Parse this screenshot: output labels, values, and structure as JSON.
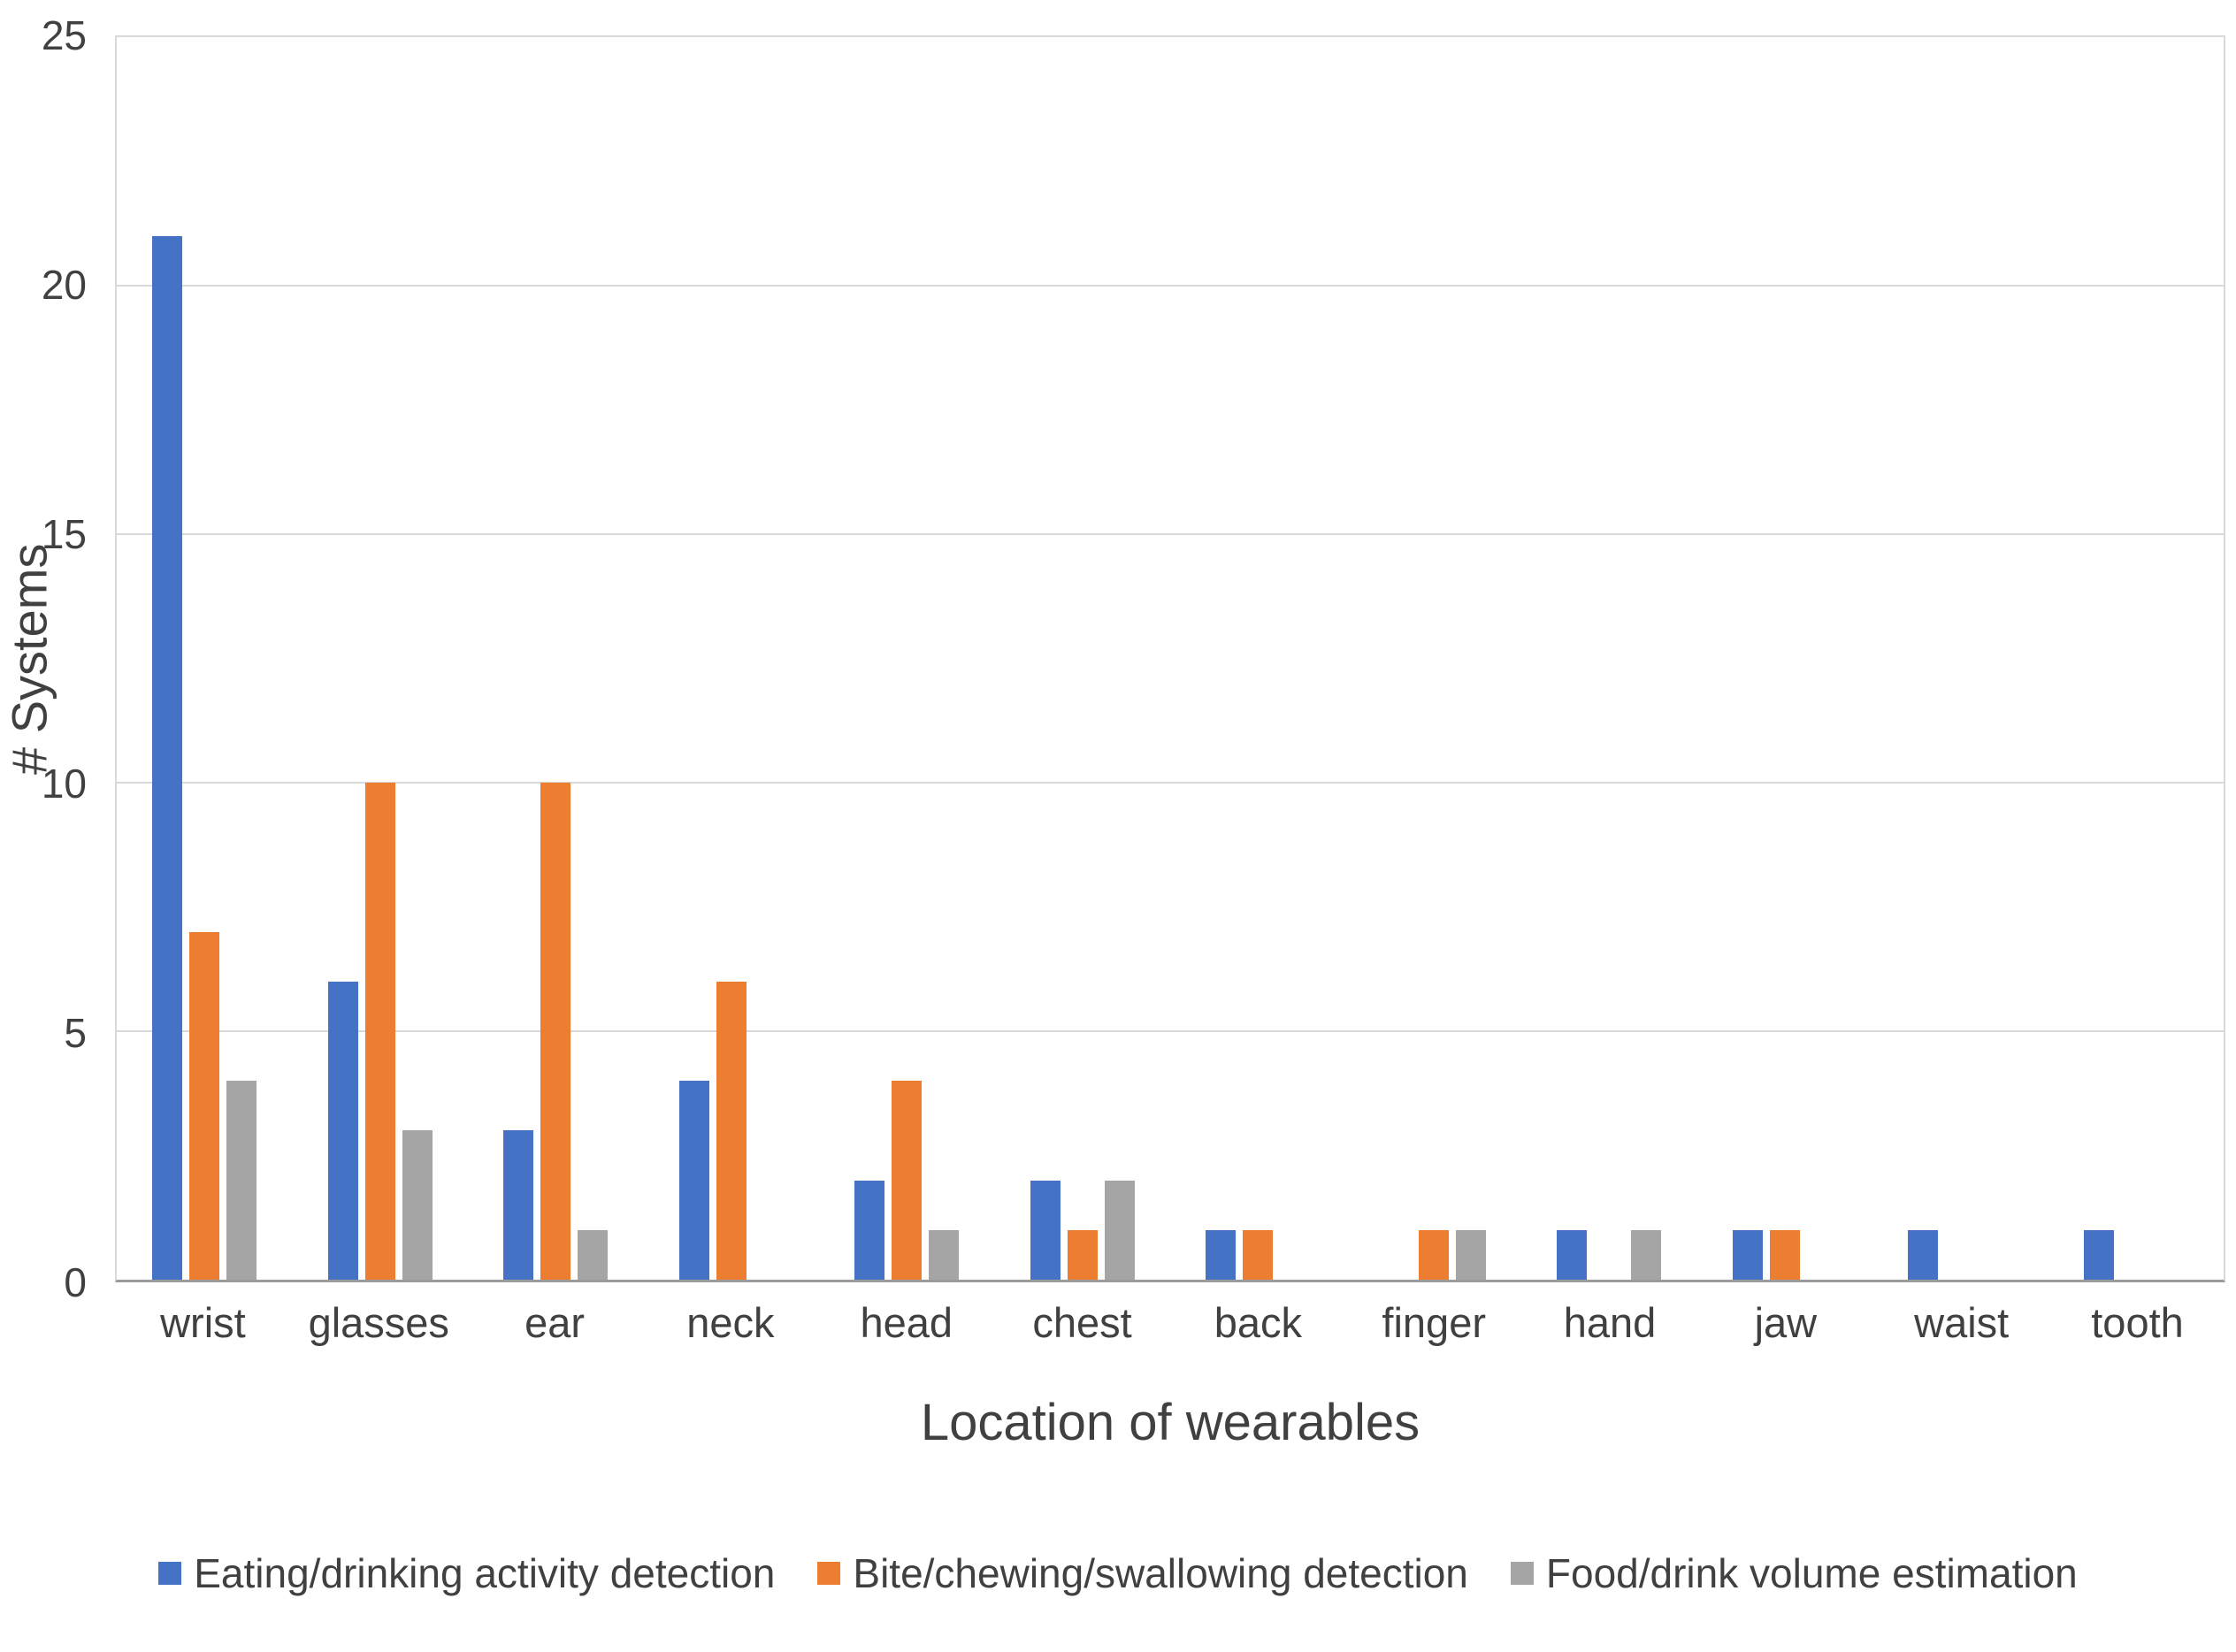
{
  "chart_data": {
    "type": "bar",
    "title": "",
    "xlabel": "Location of wearables",
    "ylabel": "# Systems",
    "ylim": [
      0,
      25
    ],
    "yticks": [
      0,
      5,
      10,
      15,
      20,
      25
    ],
    "grid": true,
    "legend_position": "bottom",
    "categories": [
      "wrist",
      "glasses",
      "ear",
      "neck",
      "head",
      "chest",
      "back",
      "finger",
      "hand",
      "jaw",
      "waist",
      "tooth"
    ],
    "series": [
      {
        "name": "Eating/drinking activity detection",
        "color": "#4472C4",
        "values": [
          21,
          6,
          3,
          4,
          2,
          2,
          1,
          0,
          1,
          1,
          1,
          1
        ]
      },
      {
        "name": "Bite/chewing/swallowing detection",
        "color": "#ED7D31",
        "values": [
          7,
          10,
          10,
          6,
          4,
          1,
          1,
          1,
          0,
          1,
          0,
          0
        ]
      },
      {
        "name": "Food/drink volume estimation",
        "color": "#A5A5A5",
        "values": [
          4,
          3,
          1,
          0,
          1,
          2,
          0,
          1,
          1,
          0,
          0,
          0
        ]
      }
    ],
    "colors": {
      "gridline": "#d9d9d9",
      "axis_line": "#9b9b9b",
      "text": "#404040"
    }
  }
}
